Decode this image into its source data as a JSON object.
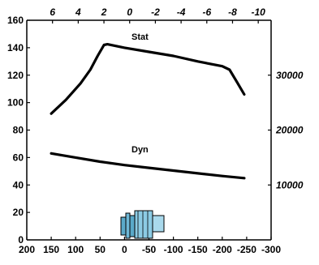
{
  "chart_data": {
    "type": "line",
    "grid": false,
    "x_bottom": {
      "ticks": [
        200,
        150,
        100,
        50,
        0,
        -50,
        -100,
        -150,
        -200,
        -250,
        -300
      ],
      "range": [
        200,
        -300
      ]
    },
    "x_top": {
      "ticks": [
        6,
        4,
        2,
        0,
        -2,
        -4,
        -6,
        -8,
        -10
      ],
      "range": [
        8,
        -11
      ]
    },
    "y_left": {
      "ticks": [
        0,
        20,
        40,
        60,
        80,
        100,
        120,
        140,
        160
      ],
      "range": [
        0,
        160
      ]
    },
    "y_right": {
      "ticks": [
        10000,
        20000,
        30000
      ]
    },
    "series": [
      {
        "name": "Stat",
        "color": "#000000",
        "points": [
          {
            "x": 150,
            "y": 92
          },
          {
            "x": 120,
            "y": 102
          },
          {
            "x": 90,
            "y": 114
          },
          {
            "x": 70,
            "y": 124
          },
          {
            "x": 55,
            "y": 134
          },
          {
            "x": 42,
            "y": 142
          },
          {
            "x": 35,
            "y": 142.5
          },
          {
            "x": 0,
            "y": 140
          },
          {
            "x": -50,
            "y": 137
          },
          {
            "x": -100,
            "y": 134
          },
          {
            "x": -150,
            "y": 130
          },
          {
            "x": -200,
            "y": 126.5
          },
          {
            "x": -215,
            "y": 124
          },
          {
            "x": -230,
            "y": 115
          },
          {
            "x": -245,
            "y": 106
          }
        ]
      },
      {
        "name": "Dyn",
        "color": "#000000",
        "points": [
          {
            "x": 150,
            "y": 63
          },
          {
            "x": 100,
            "y": 60
          },
          {
            "x": 50,
            "y": 57
          },
          {
            "x": 0,
            "y": 54.5
          },
          {
            "x": -50,
            "y": 52.5
          },
          {
            "x": -100,
            "y": 50.5
          },
          {
            "x": -150,
            "y": 48.5
          },
          {
            "x": -200,
            "y": 46.5
          },
          {
            "x": -245,
            "y": 45
          }
        ]
      }
    ],
    "device_icon": "bearing-unit-icon"
  }
}
